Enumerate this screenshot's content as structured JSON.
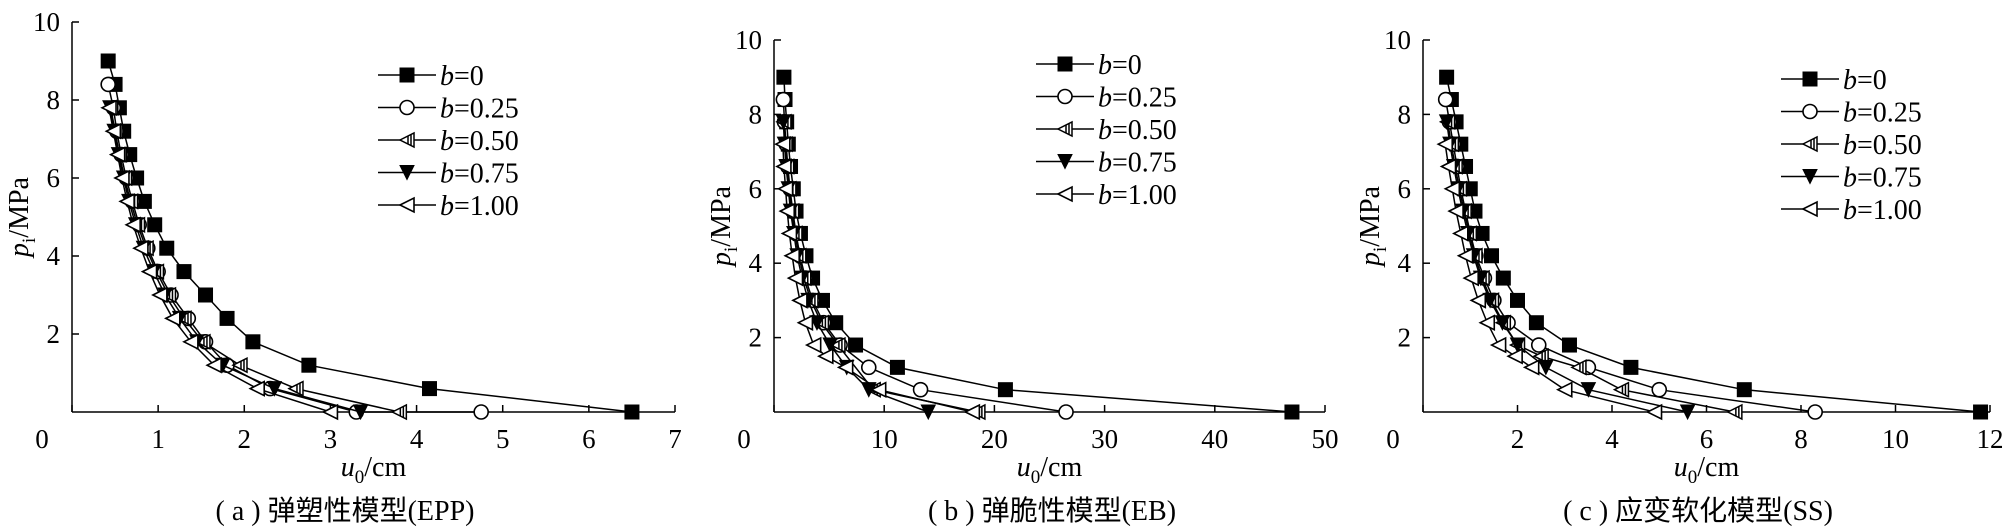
{
  "chart_data": [
    {
      "type": "line",
      "caption": "( a ) 弹塑性模型(EPP)",
      "ylabel": {
        "main": "p",
        "sub": "i",
        "rest": "/MPa"
      },
      "xlabel": {
        "main": "u",
        "sub": "0",
        "rest": "/cm"
      },
      "xlim": [
        0,
        7
      ],
      "ylim": [
        0,
        10
      ],
      "xticks": [
        0,
        1,
        2,
        3,
        4,
        5,
        6,
        7
      ],
      "yticks": [
        2,
        4,
        6,
        8,
        10
      ],
      "legend_position": "top-right",
      "series": [
        {
          "name": "b=0",
          "label_var": "b",
          "label_val": "=0",
          "marker": "filled-square",
          "x": [
            0.42,
            0.5,
            0.55,
            0.6,
            0.67,
            0.75,
            0.84,
            0.96,
            1.1,
            1.3,
            1.55,
            1.8,
            2.1,
            2.75,
            4.15,
            6.5
          ],
          "y": [
            9.0,
            8.4,
            7.8,
            7.2,
            6.6,
            6.0,
            5.4,
            4.8,
            4.2,
            3.6,
            3.0,
            2.4,
            1.8,
            1.2,
            0.6,
            0.0
          ]
        },
        {
          "name": "b=0.25",
          "label_var": "b",
          "label_val": "=0.25",
          "marker": "open-circle",
          "x": [
            0.42,
            0.48,
            0.52,
            0.57,
            0.63,
            0.7,
            0.78,
            0.88,
            1.0,
            1.15,
            1.35,
            1.55,
            1.8,
            2.3,
            3.3,
            4.75
          ],
          "y": [
            8.4,
            7.8,
            7.2,
            6.6,
            6.0,
            5.4,
            4.8,
            4.2,
            3.6,
            3.0,
            2.4,
            1.8,
            1.2,
            0.6,
            0.0,
            0.0
          ]
        },
        {
          "name": "b=0.50",
          "label_var": "b",
          "label_val": "=0.50",
          "marker": "half-triangle-left",
          "x": [
            0.45,
            0.5,
            0.55,
            0.61,
            0.68,
            0.76,
            0.86,
            0.98,
            1.12,
            1.3,
            1.52,
            1.95,
            2.6,
            3.8
          ],
          "y": [
            7.8,
            7.2,
            6.6,
            6.0,
            5.4,
            4.8,
            4.2,
            3.6,
            3.0,
            2.4,
            1.8,
            1.2,
            0.6,
            0.0
          ]
        },
        {
          "name": "b=0.75",
          "label_var": "b",
          "label_val": "=0.75",
          "marker": "filled-triangle-down",
          "x": [
            0.44,
            0.49,
            0.54,
            0.6,
            0.66,
            0.74,
            0.83,
            0.95,
            1.08,
            1.25,
            1.45,
            1.75,
            2.35,
            3.35
          ],
          "y": [
            7.8,
            7.2,
            6.6,
            6.0,
            5.4,
            4.8,
            4.2,
            3.6,
            3.0,
            2.4,
            1.8,
            1.2,
            0.6,
            0.0
          ]
        },
        {
          "name": "b=1.00",
          "label_var": "b",
          "label_val": "=1.00",
          "marker": "open-triangle-left",
          "x": [
            0.43,
            0.48,
            0.53,
            0.58,
            0.64,
            0.71,
            0.8,
            0.9,
            1.02,
            1.17,
            1.38,
            1.65,
            2.15,
            3.0
          ],
          "y": [
            7.8,
            7.2,
            6.6,
            6.0,
            5.4,
            4.8,
            4.2,
            3.6,
            3.0,
            2.4,
            1.8,
            1.2,
            0.6,
            0.0
          ]
        }
      ]
    },
    {
      "type": "line",
      "caption": "( b ) 弹脆性模型(EB)",
      "ylabel": {
        "main": "p",
        "sub": "i",
        "rest": "/MPa"
      },
      "xlabel": {
        "main": "u",
        "sub": "0",
        "rest": "/cm"
      },
      "xlim": [
        0,
        50
      ],
      "ylim": [
        0,
        10
      ],
      "xticks": [
        0,
        10,
        20,
        30,
        40,
        50
      ],
      "yticks": [
        2,
        4,
        6,
        8,
        10
      ],
      "legend_position": "top-right",
      "series": [
        {
          "name": "b=0",
          "label_var": "b",
          "label_val": "=0",
          "marker": "filled-square",
          "x": [
            0.9,
            1.0,
            1.15,
            1.3,
            1.5,
            1.75,
            2.0,
            2.4,
            2.9,
            3.5,
            4.4,
            5.6,
            7.4,
            11.2,
            21.0,
            47.0
          ],
          "y": [
            9.0,
            8.4,
            7.8,
            7.2,
            6.6,
            6.0,
            5.4,
            4.8,
            4.2,
            3.6,
            3.0,
            2.4,
            1.8,
            1.2,
            0.6,
            0.0
          ]
        },
        {
          "name": "b=0.25",
          "label_var": "b",
          "label_val": "=0.25",
          "marker": "open-circle",
          "x": [
            0.85,
            0.95,
            1.1,
            1.25,
            1.45,
            1.7,
            2.0,
            2.35,
            2.85,
            3.5,
            4.5,
            6.0,
            8.6,
            13.3,
            26.5
          ],
          "y": [
            8.4,
            7.8,
            7.2,
            6.6,
            6.0,
            5.4,
            4.8,
            4.2,
            3.6,
            3.0,
            2.4,
            1.8,
            1.2,
            0.6,
            0.0
          ]
        },
        {
          "name": "b=0.50",
          "label_var": "b",
          "label_val": "=0.50",
          "marker": "half-triangle-left",
          "x": [
            0.9,
            1.0,
            1.15,
            1.35,
            1.6,
            1.9,
            2.25,
            2.7,
            3.35,
            4.3,
            5.8,
            9.0,
            18.5
          ],
          "y": [
            7.8,
            7.2,
            6.6,
            6.0,
            5.4,
            4.8,
            4.2,
            3.6,
            3.0,
            2.4,
            1.8,
            0.6,
            0.0
          ]
        },
        {
          "name": "b=0.75",
          "label_var": "b",
          "label_val": "=0.75",
          "marker": "filled-triangle-down",
          "x": [
            0.85,
            0.95,
            1.1,
            1.3,
            1.5,
            1.8,
            2.1,
            2.55,
            3.1,
            3.9,
            5.1,
            6.6,
            8.6,
            14.0
          ],
          "y": [
            7.8,
            7.2,
            6.6,
            6.0,
            5.4,
            4.8,
            4.2,
            3.6,
            3.0,
            2.4,
            1.8,
            1.2,
            0.6,
            0.0
          ]
        },
        {
          "name": "b=1.00",
          "label_var": "b",
          "label_val": "=1.00",
          "marker": "open-triangle-left",
          "x": [
            0.8,
            0.9,
            1.05,
            1.2,
            1.4,
            1.65,
            1.95,
            2.35,
            2.85,
            3.6,
            4.7,
            6.5,
            9.5,
            18.0
          ],
          "y": [
            7.2,
            6.6,
            6.0,
            5.4,
            4.8,
            4.2,
            3.6,
            3.0,
            2.4,
            1.8,
            1.5,
            1.2,
            0.6,
            0.0
          ]
        }
      ]
    },
    {
      "type": "line",
      "caption": "( c ) 应变软化模型(SS)",
      "ylabel": {
        "main": "p",
        "sub": "i",
        "rest": "/MPa"
      },
      "xlabel": {
        "main": "u",
        "sub": "0",
        "rest": "/cm"
      },
      "xlim": [
        0,
        12
      ],
      "ylim": [
        0,
        10
      ],
      "xticks": [
        0,
        2,
        4,
        6,
        8,
        10,
        12
      ],
      "yticks": [
        2,
        4,
        6,
        8,
        10
      ],
      "legend_position": "top-right",
      "series": [
        {
          "name": "b=0",
          "label_var": "b",
          "label_val": "=0",
          "marker": "filled-square",
          "x": [
            0.5,
            0.6,
            0.7,
            0.8,
            0.9,
            1.0,
            1.1,
            1.25,
            1.45,
            1.7,
            2.0,
            2.4,
            3.1,
            4.4,
            6.8,
            11.8
          ],
          "y": [
            9.0,
            8.4,
            7.8,
            7.2,
            6.6,
            6.0,
            5.4,
            4.8,
            4.2,
            3.6,
            3.0,
            2.4,
            1.8,
            1.2,
            0.6,
            0.0
          ]
        },
        {
          "name": "b=0.25",
          "label_var": "b",
          "label_val": "=0.25",
          "marker": "open-circle",
          "x": [
            0.48,
            0.56,
            0.64,
            0.72,
            0.8,
            0.9,
            1.0,
            1.12,
            1.3,
            1.5,
            1.8,
            2.45,
            3.5,
            5.0,
            8.3
          ],
          "y": [
            8.4,
            7.8,
            7.2,
            6.6,
            6.0,
            5.4,
            4.8,
            4.2,
            3.6,
            3.0,
            2.4,
            1.8,
            1.2,
            0.6,
            0.0
          ]
        },
        {
          "name": "b=0.50",
          "label_var": "b",
          "label_val": "=0.50",
          "marker": "half-triangle-left",
          "x": [
            0.52,
            0.6,
            0.68,
            0.77,
            0.87,
            0.98,
            1.1,
            1.25,
            1.45,
            1.7,
            2.0,
            2.5,
            3.3,
            4.2,
            6.6
          ],
          "y": [
            7.8,
            7.2,
            6.6,
            6.0,
            5.4,
            4.8,
            4.2,
            3.6,
            3.0,
            2.4,
            1.8,
            1.5,
            1.2,
            0.6,
            0.0
          ]
        },
        {
          "name": "b=0.75",
          "label_var": "b",
          "label_val": "=0.75",
          "marker": "filled-triangle-down",
          "x": [
            0.5,
            0.57,
            0.65,
            0.74,
            0.84,
            0.95,
            1.07,
            1.22,
            1.42,
            1.68,
            2.0,
            2.6,
            3.5,
            5.6
          ],
          "y": [
            7.8,
            7.2,
            6.6,
            6.0,
            5.4,
            4.8,
            4.2,
            3.6,
            3.0,
            2.4,
            1.8,
            1.2,
            0.6,
            0.0
          ]
        },
        {
          "name": "b=1.00",
          "label_var": "b",
          "label_val": "=1.00",
          "marker": "open-triangle-left",
          "x": [
            0.47,
            0.54,
            0.62,
            0.7,
            0.8,
            0.9,
            1.02,
            1.17,
            1.36,
            1.6,
            1.95,
            2.3,
            3.0,
            4.9
          ],
          "y": [
            7.2,
            6.6,
            6.0,
            5.4,
            4.8,
            4.2,
            3.6,
            3.0,
            2.4,
            1.8,
            1.5,
            1.2,
            0.6,
            0.0
          ]
        }
      ]
    }
  ]
}
